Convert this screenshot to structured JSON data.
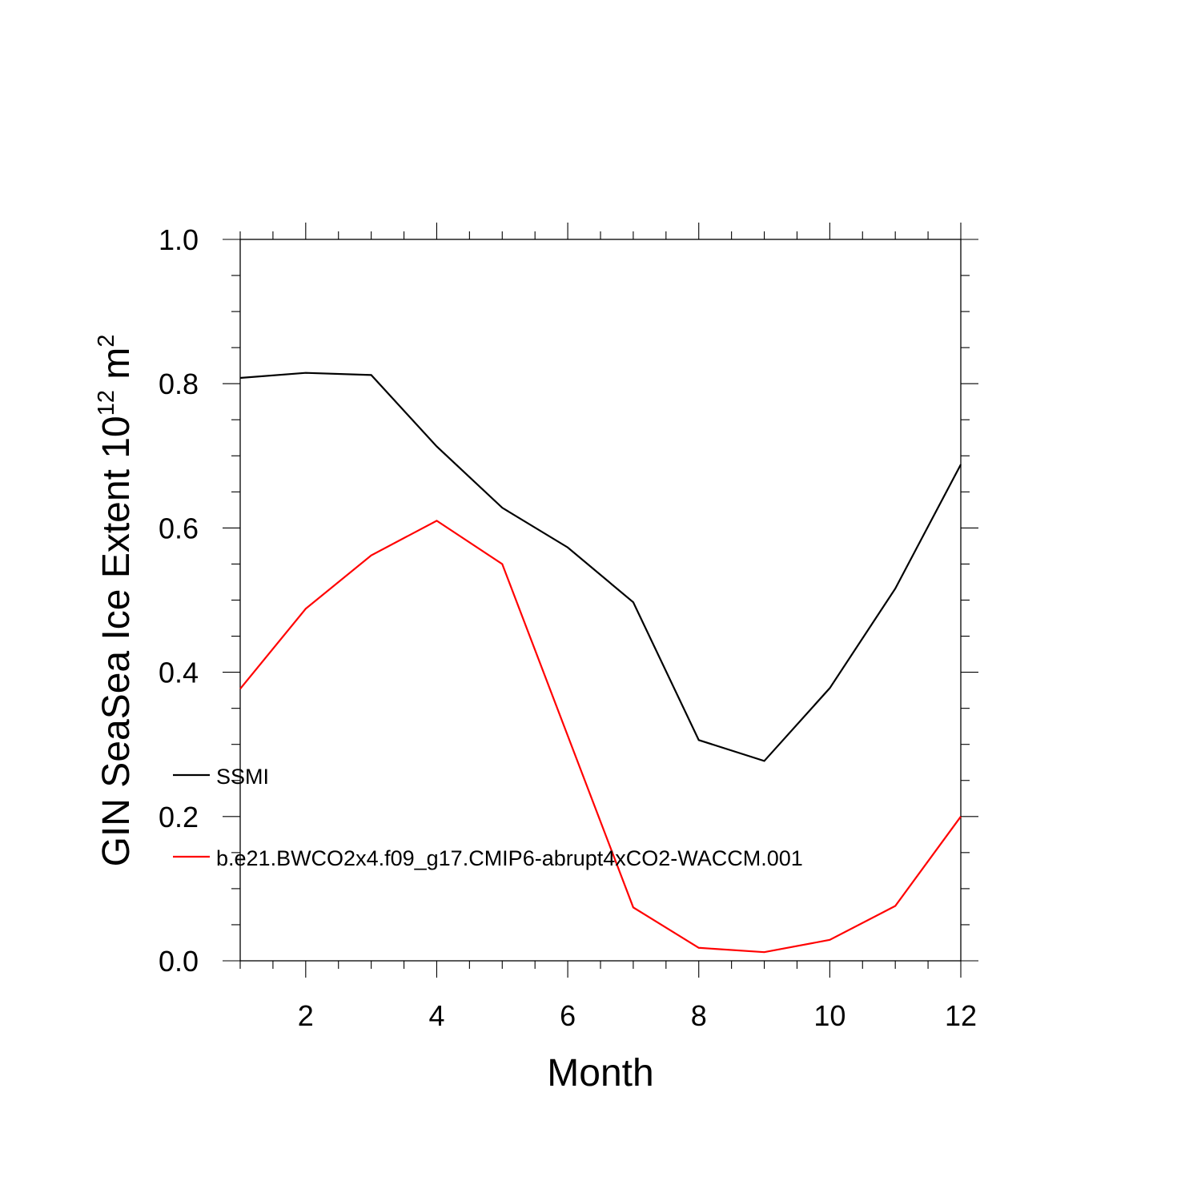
{
  "chart_data": {
    "type": "line",
    "xlabel": "Month",
    "ylabel": {
      "text": "GIN SeaSea Ice Extent 10",
      "sup1": "12",
      "unit": " m",
      "sup2": "2"
    },
    "xlim": [
      1,
      12
    ],
    "ylim": [
      0,
      1
    ],
    "xticks": [
      2,
      4,
      6,
      8,
      10,
      12
    ],
    "yticks": [
      0,
      0.2,
      0.4,
      0.6,
      0.8,
      1.0
    ],
    "ytick_labels": [
      "0.0",
      "0.2",
      "0.4",
      "0.6",
      "0.8",
      "1.0"
    ],
    "x": [
      1,
      2,
      3,
      4,
      5,
      6,
      7,
      8,
      9,
      10,
      11,
      12
    ],
    "series": [
      {
        "name": "SSMI",
        "color": "#000000",
        "values": [
          0.808,
          0.815,
          0.812,
          0.713,
          0.628,
          0.573,
          0.497,
          0.306,
          0.277,
          0.378,
          0.516,
          0.688
        ]
      },
      {
        "name": "b.e21.BWCO2x4.f09_g17.CMIP6-abrupt4xCO2-WACCM.001",
        "color": "#ff0000",
        "values": [
          0.377,
          0.488,
          0.562,
          0.61,
          0.55,
          0.312,
          0.074,
          0.018,
          0.012,
          0.029,
          0.076,
          0.2
        ]
      }
    ],
    "legend": {
      "placement": "lower-left"
    },
    "grid": false
  }
}
